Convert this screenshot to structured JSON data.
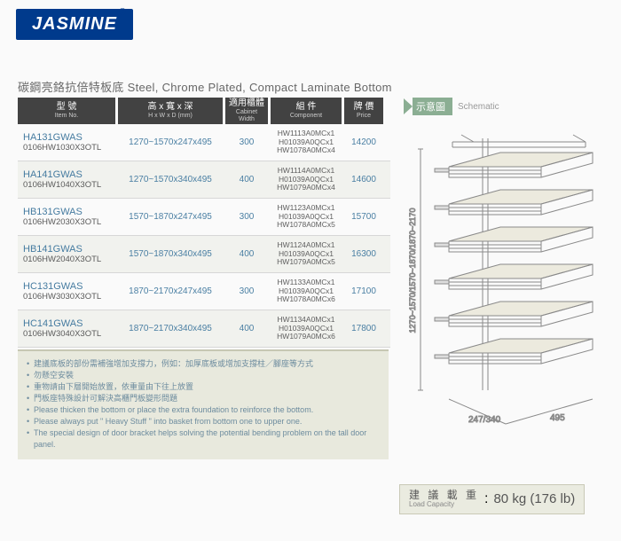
{
  "brand": {
    "name": "JASMINE",
    "reg": "®"
  },
  "subtitle": "碳鋼亮鉻抗倍特板底 Steel, Chrome Plated, Compact Laminate Bottom",
  "headers": {
    "item": {
      "cn": "型 號",
      "en": "Item No."
    },
    "hwd": {
      "cn": "高 x 寬 x 深",
      "en": "H x W x D (mm)"
    },
    "cab": {
      "cn": "適用櫃體",
      "en": "Cabinet Width"
    },
    "comp": {
      "cn": "組 件",
      "en": "Component"
    },
    "price": {
      "cn": "牌 價",
      "en": "Price"
    }
  },
  "schematic": {
    "cn": "示意圖",
    "en": "Schematic"
  },
  "rows": [
    {
      "m1": "HA131GWAS",
      "m2": "0106HW1030X3OTL",
      "hwd": "1270~1570x247x495",
      "cab": "300",
      "comp": "HW1113A0MCx1\nH01039A0QCx1\nHW1078A0MCx4",
      "price": "14200",
      "alt": false
    },
    {
      "m1": "HA141GWAS",
      "m2": "0106HW1040X3OTL",
      "hwd": "1270~1570x340x495",
      "cab": "400",
      "comp": "HW1114A0MCx1\nH01039A0QCx1\nHW1079A0MCx4",
      "price": "14600",
      "alt": true
    },
    {
      "m1": "HB131GWAS",
      "m2": "0106HW2030X3OTL",
      "hwd": "1570~1870x247x495",
      "cab": "300",
      "comp": "HW1123A0MCx1\nH01039A0QCx1\nHW1078A0MCx5",
      "price": "15700",
      "alt": false
    },
    {
      "m1": "HB141GWAS",
      "m2": "0106HW2040X3OTL",
      "hwd": "1570~1870x340x495",
      "cab": "400",
      "comp": "HW1124A0MCx1\nH01039A0QCx1\nHW1079A0MCx5",
      "price": "16300",
      "alt": true
    },
    {
      "m1": "HC131GWAS",
      "m2": "0106HW3030X3OTL",
      "hwd": "1870~2170x247x495",
      "cab": "300",
      "comp": "HW1133A0MCx1\nH01039A0QCx1\nHW1078A0MCx6",
      "price": "17100",
      "alt": false
    },
    {
      "m1": "HC141GWAS",
      "m2": "0106HW3040X3OTL",
      "hwd": "1870~2170x340x495",
      "cab": "400",
      "comp": "HW1134A0MCx1\nH01039A0QCx1\nHW1079A0MCx6",
      "price": "17800",
      "alt": true
    }
  ],
  "notes": [
    "建議底板的部份需補強增加支撐力，例如：加厚底板或增加支撐柱／腳座等方式",
    "勿懸空安裝",
    "重物請由下層開始放置，依重量由下往上放置",
    "門板座特殊設計可解決高櫃門板變形問題",
    "Please thicken the bottom or place the extra foundation to reinforce the bottom.",
    "Please always put \" Heavy Stuff \" into basket from bottom one to upper one.",
    "The special design of door bracket helps solving the potential bending problem on the tall door panel."
  ],
  "diagram": {
    "height_label": "1270~1570/1570~1870/1870~2170",
    "depth": "495",
    "width": "247/340",
    "colors": {
      "stroke": "#8a8a8a",
      "fill": "#eceade"
    }
  },
  "load": {
    "label_cn": "建 議 載 重",
    "label_en": "Load Capacity",
    "value": "80 kg (176 lb)"
  }
}
